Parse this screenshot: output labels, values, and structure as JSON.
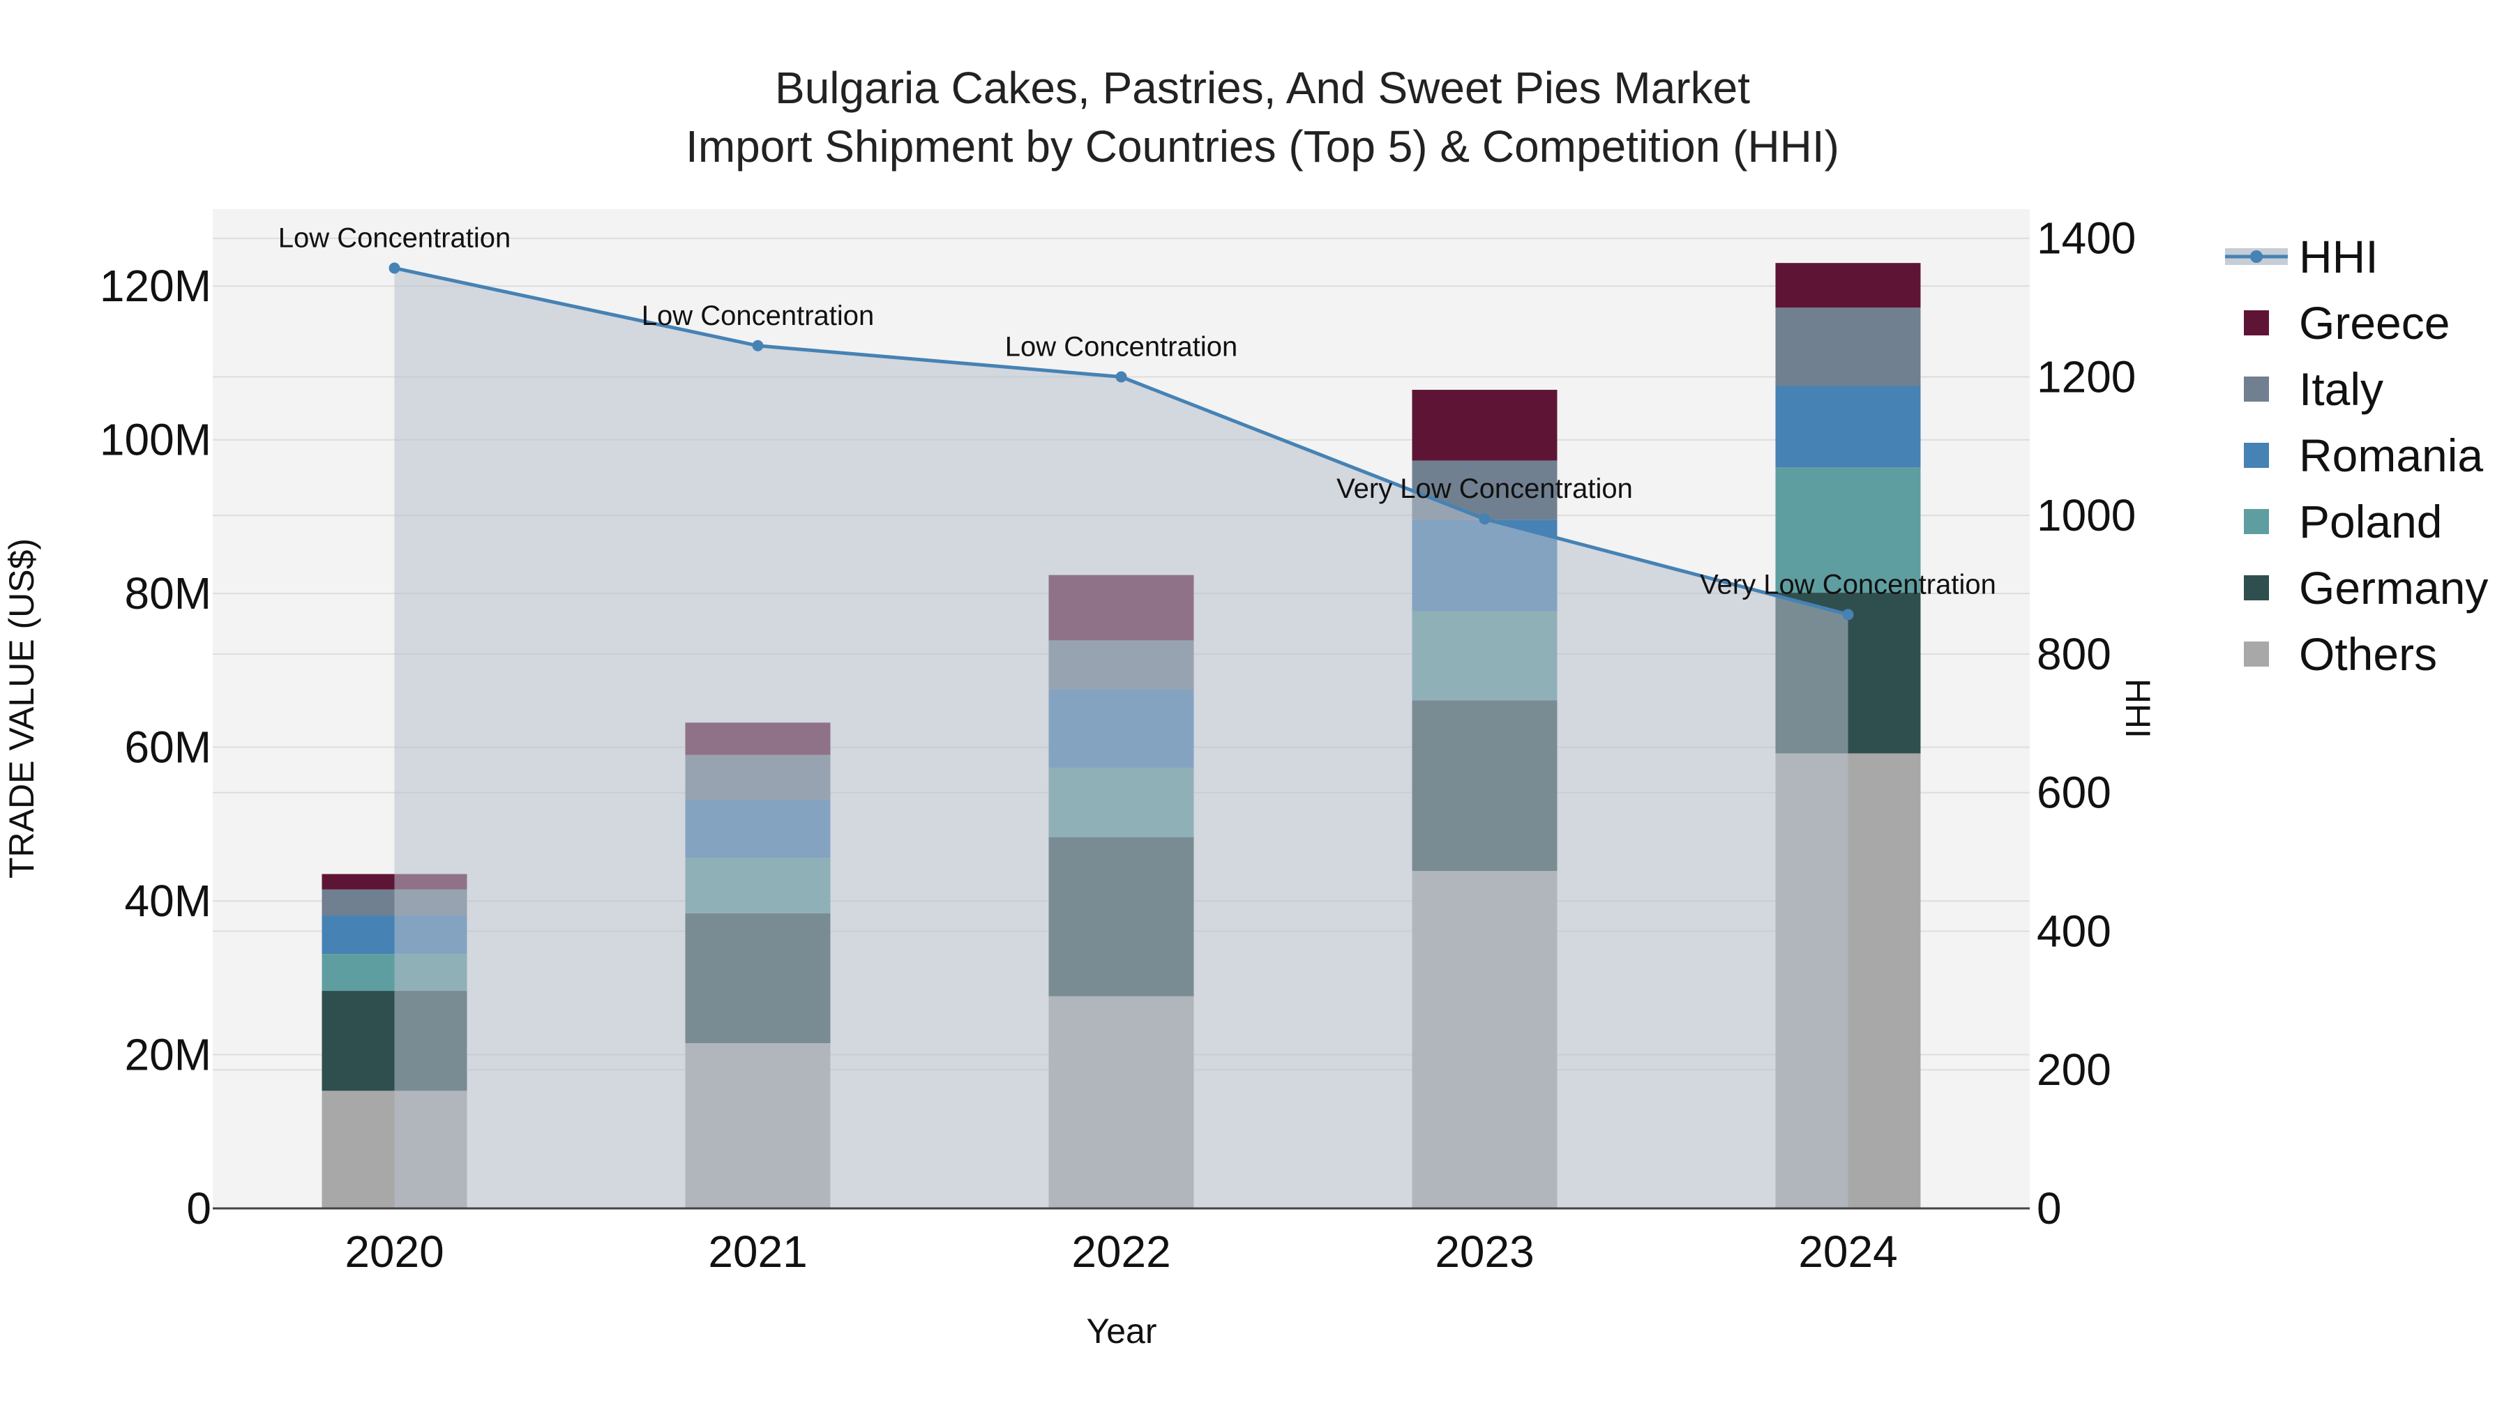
{
  "chart_data": {
    "type": "bar",
    "stacked": true,
    "title_line1": "Bulgaria Cakes, Pastries, And Sweet Pies Market",
    "title_line2": "Import Shipment by Countries (Top 5) & Competition (HHI)",
    "xlabel": "Year",
    "ylabel": "TRADE VALUE (US$)",
    "y2label": "HHI",
    "categories": [
      "2020",
      "2021",
      "2022",
      "2023",
      "2024"
    ],
    "ylim": [
      0,
      130000000
    ],
    "y_ticks": [
      0,
      20000000,
      40000000,
      60000000,
      80000000,
      100000000,
      120000000
    ],
    "y_tick_labels": [
      "0",
      "20M",
      "40M",
      "60M",
      "80M",
      "100M",
      "120M"
    ],
    "y2lim": [
      0,
      1442
    ],
    "y2_ticks": [
      0,
      200,
      400,
      600,
      800,
      1000,
      1200,
      1400
    ],
    "y2_tick_labels": [
      "0",
      "200",
      "400",
      "600",
      "800",
      "1000",
      "1200",
      "1400"
    ],
    "series": [
      {
        "name": "Others",
        "color": "#a8a8a8",
        "values": [
          15300000,
          21500000,
          27600000,
          43900000,
          59200000
        ]
      },
      {
        "name": "Germany",
        "color": "#2f4f4f",
        "values": [
          13000000,
          16900000,
          20700000,
          22200000,
          20900000
        ]
      },
      {
        "name": "Poland",
        "color": "#5f9ea0",
        "values": [
          4800000,
          7200000,
          9000000,
          11600000,
          16300000
        ]
      },
      {
        "name": "Romania",
        "color": "#4682b4",
        "values": [
          5000000,
          7600000,
          10200000,
          11900000,
          10600000
        ]
      },
      {
        "name": "Italy",
        "color": "#708090",
        "values": [
          3400000,
          5800000,
          6400000,
          7700000,
          10200000
        ]
      },
      {
        "name": "Greece",
        "color": "#5e1535",
        "values": [
          2000000,
          4200000,
          8500000,
          9200000,
          5800000
        ]
      }
    ],
    "hhi": {
      "name": "HHI",
      "color": "#4682b4",
      "values": [
        1357,
        1245,
        1200,
        995,
        857
      ],
      "labels": [
        "Low Concentration",
        "Low Concentration",
        "Low Concentration",
        "Very Low Concentration",
        "Very Low Concentration"
      ]
    },
    "legend": [
      "HHI",
      "Greece",
      "Italy",
      "Romania",
      "Poland",
      "Germany",
      "Others"
    ],
    "legend_position": "right"
  }
}
